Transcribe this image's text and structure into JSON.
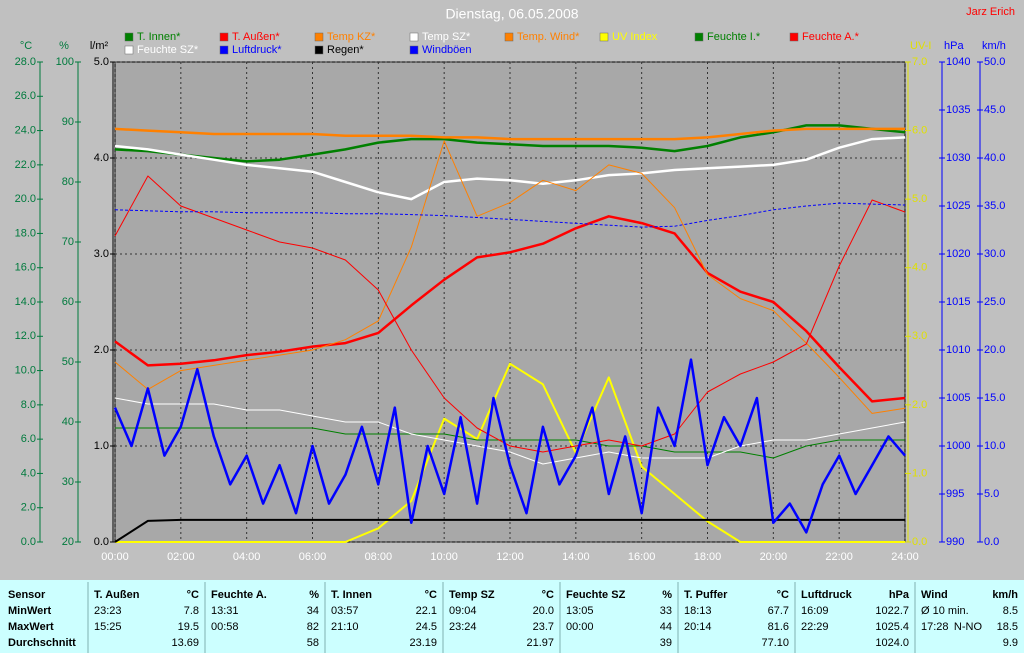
{
  "chart_data": {
    "type": "line",
    "title": "Dienstag, 06.05.2008",
    "author": "Jarz Erich",
    "xlim": [
      0,
      24
    ],
    "xticks": [
      {
        "value": 0,
        "label": "00:00"
      },
      {
        "value": 2,
        "label": "02:00"
      },
      {
        "value": 4,
        "label": "04:00"
      },
      {
        "value": 6,
        "label": "06:00"
      },
      {
        "value": 8,
        "label": "08:00"
      },
      {
        "value": 10,
        "label": "10:00"
      },
      {
        "value": 12,
        "label": "12:00"
      },
      {
        "value": 14,
        "label": "14:00"
      },
      {
        "value": 16,
        "label": "16:00"
      },
      {
        "value": 18,
        "label": "18:00"
      },
      {
        "value": 20,
        "label": "20:00"
      },
      {
        "value": 22,
        "label": "22:00"
      },
      {
        "value": 24,
        "label": "24:00"
      }
    ],
    "grid": true,
    "grid_axis": 2,
    "axes": [
      {
        "label": "°C",
        "color": "#007a3d",
        "side": "left",
        "lim": [
          0,
          28
        ],
        "ticks": [
          {
            "value": 0,
            "label": "0.0"
          },
          {
            "value": 2,
            "label": "2.0"
          },
          {
            "value": 4,
            "label": "4.0"
          },
          {
            "value": 6,
            "label": "6.0"
          },
          {
            "value": 8,
            "label": "8.0"
          },
          {
            "value": 10,
            "label": "10.0"
          },
          {
            "value": 12,
            "label": "12.0"
          },
          {
            "value": 14,
            "label": "14.0"
          },
          {
            "value": 16,
            "label": "16.0"
          },
          {
            "value": 18,
            "label": "18.0"
          },
          {
            "value": 20,
            "label": "20.0"
          },
          {
            "value": 22,
            "label": "22.0"
          },
          {
            "value": 24,
            "label": "24.0"
          },
          {
            "value": 26,
            "label": "26.0"
          },
          {
            "value": 28,
            "label": "28.0"
          }
        ]
      },
      {
        "label": "%",
        "color": "#007a3d",
        "side": "left",
        "lim": [
          20,
          100
        ],
        "ticks": [
          20,
          30,
          40,
          50,
          60,
          70,
          80,
          90,
          100
        ]
      },
      {
        "label": "l/m²",
        "color": "#000000",
        "side": "left",
        "lim": [
          0,
          5
        ],
        "ticks": [
          {
            "value": 0,
            "label": "0.0"
          },
          {
            "value": 1,
            "label": "1.0"
          },
          {
            "value": 2,
            "label": "2.0"
          },
          {
            "value": 3,
            "label": "3.0"
          },
          {
            "value": 4,
            "label": "4.0"
          },
          {
            "value": 5,
            "label": "5.0"
          }
        ]
      },
      {
        "label": "UV-I",
        "color": "#e0e000",
        "side": "right",
        "lim": [
          0,
          7
        ],
        "ticks": [
          {
            "value": 0,
            "label": "0.0"
          },
          {
            "value": 1,
            "label": "1.0"
          },
          {
            "value": 2,
            "label": "2.0"
          },
          {
            "value": 3,
            "label": "3.0"
          },
          {
            "value": 4,
            "label": "4.0"
          },
          {
            "value": 5,
            "label": "5.0"
          },
          {
            "value": 6,
            "label": "6.0"
          },
          {
            "value": 7,
            "label": "7.0"
          }
        ]
      },
      {
        "label": "hPa",
        "color": "#0000ff",
        "side": "right",
        "lim": [
          990,
          1040
        ],
        "ticks": [
          990,
          995,
          1000,
          1005,
          1010,
          1015,
          1020,
          1025,
          1030,
          1035,
          1040
        ]
      },
      {
        "label": "km/h",
        "color": "#0000ff",
        "side": "right",
        "lim": [
          0,
          50
        ],
        "ticks": [
          {
            "value": 0,
            "label": "0.0"
          },
          {
            "value": 5,
            "label": "5.0"
          },
          {
            "value": 10,
            "label": "10.0"
          },
          {
            "value": 15,
            "label": "15.0"
          },
          {
            "value": 20,
            "label": "20.0"
          },
          {
            "value": 25,
            "label": "25.0"
          },
          {
            "value": 30,
            "label": "30.0"
          },
          {
            "value": 35,
            "label": "35.0"
          },
          {
            "value": 40,
            "label": "40.0"
          },
          {
            "value": 45,
            "label": "45.0"
          },
          {
            "value": 50,
            "label": "50.0"
          }
        ]
      }
    ],
    "x": [
      0,
      1,
      2,
      3,
      4,
      5,
      6,
      7,
      8,
      9,
      10,
      11,
      12,
      13,
      14,
      15,
      16,
      17,
      18,
      19,
      20,
      21,
      22,
      23,
      24
    ],
    "series": [
      {
        "name": "T. Innen*",
        "color": "#008000",
        "axis": 0,
        "width": 2.5,
        "values": [
          22.9,
          22.8,
          22.6,
          22.4,
          22.2,
          22.3,
          22.6,
          22.9,
          23.3,
          23.5,
          23.5,
          23.3,
          23.2,
          23.1,
          23.1,
          23.1,
          23.0,
          22.8,
          23.1,
          23.6,
          23.9,
          24.3,
          24.3,
          24.1,
          23.9
        ]
      },
      {
        "name": "T. Außen*",
        "color": "#ff0000",
        "axis": 0,
        "width": 2.5,
        "values": [
          11.7,
          10.3,
          10.4,
          10.6,
          10.9,
          11.1,
          11.4,
          11.6,
          12.2,
          13.8,
          15.3,
          16.6,
          16.9,
          17.4,
          18.3,
          19.0,
          18.6,
          18.0,
          15.7,
          14.6,
          14.0,
          12.3,
          10.2,
          8.2,
          8.4
        ]
      },
      {
        "name": "Temp KZ*",
        "color": "#ff8000",
        "axis": 0,
        "width": 2.5,
        "values": [
          24.1,
          24.0,
          23.9,
          23.8,
          23.8,
          23.8,
          23.8,
          23.7,
          23.7,
          23.7,
          23.6,
          23.6,
          23.5,
          23.5,
          23.5,
          23.5,
          23.5,
          23.5,
          23.6,
          23.8,
          24.0,
          24.1,
          24.1,
          24.1,
          24.1
        ]
      },
      {
        "name": "Temp SZ*",
        "color": "#ffffff",
        "axis": 0,
        "width": 2.5,
        "values": [
          23.1,
          22.9,
          22.6,
          22.3,
          22.0,
          21.8,
          21.6,
          21.0,
          20.4,
          20.0,
          21.0,
          21.2,
          21.1,
          20.9,
          21.1,
          21.4,
          21.5,
          21.7,
          21.8,
          21.9,
          22.0,
          22.3,
          23.0,
          23.5,
          23.6
        ]
      },
      {
        "name": "Temp. Wind*",
        "color": "#ff8000",
        "axis": 0,
        "width": 1,
        "values": [
          10.5,
          8.9,
          10.0,
          10.3,
          10.6,
          10.9,
          11.2,
          11.8,
          12.9,
          17.2,
          23.4,
          19.0,
          19.8,
          21.1,
          20.5,
          22.0,
          21.5,
          19.5,
          15.6,
          14.2,
          13.5,
          11.6,
          9.6,
          7.5,
          7.8
        ]
      },
      {
        "name": "UV Index",
        "color": "#ffff00",
        "axis": 3,
        "width": 2,
        "values": [
          0,
          0,
          0,
          0,
          0,
          0,
          0,
          0,
          0.2,
          0.6,
          1.8,
          1.5,
          2.6,
          2.3,
          1.3,
          2.4,
          1.1,
          0.7,
          0.3,
          0,
          0,
          0,
          0,
          0,
          0
        ]
      },
      {
        "name": "Feuchte I.*",
        "color": "#008000",
        "axis": 1,
        "width": 1,
        "values": [
          39,
          39,
          39,
          39,
          39,
          39,
          39,
          38,
          38,
          38,
          38,
          37,
          37,
          37,
          37,
          36,
          36,
          35,
          35,
          35,
          34,
          36,
          37,
          37,
          37
        ]
      },
      {
        "name": "Feuchte A.*",
        "color": "#ff0000",
        "axis": 1,
        "width": 1,
        "values": [
          71,
          81,
          76,
          74,
          72,
          70,
          69,
          67,
          62,
          52,
          44,
          39,
          36,
          35,
          36,
          37,
          36,
          38,
          45,
          48,
          50,
          53,
          66,
          77,
          75
        ]
      },
      {
        "name": "Feuchte SZ*",
        "color": "#ffffff",
        "axis": 1,
        "width": 1,
        "values": [
          44,
          43,
          43,
          43,
          42,
          42,
          41,
          40,
          40,
          38,
          37,
          36,
          35,
          33,
          34,
          35,
          34,
          34,
          34,
          36,
          37,
          37,
          38,
          39,
          40
        ]
      },
      {
        "name": "Luftdruck*",
        "color": "#0000ff",
        "axis": 4,
        "width": 1,
        "dash": true,
        "values": [
          1024.6,
          1024.5,
          1024.4,
          1024.4,
          1024.3,
          1024.3,
          1024.3,
          1024.2,
          1024.2,
          1024.1,
          1024.0,
          1023.8,
          1023.6,
          1023.4,
          1023.2,
          1023.0,
          1022.8,
          1022.9,
          1023.5,
          1024.0,
          1024.6,
          1025.0,
          1025.3,
          1025.2,
          1025.1
        ]
      },
      {
        "name": "Regen*",
        "color": "#000000",
        "axis": 2,
        "width": 2,
        "values": [
          0,
          0.22,
          0.23,
          0.23,
          0.23,
          0.23,
          0.23,
          0.23,
          0.23,
          0.23,
          0.23,
          0.23,
          0.23,
          0.23,
          0.23,
          0.23,
          0.23,
          0.23,
          0.23,
          0.23,
          0.23,
          0.23,
          0.23,
          0.23,
          0.23
        ]
      },
      {
        "name": "Windböen",
        "color": "#0000ff",
        "axis": 5,
        "width": 2.5,
        "x": [
          0,
          0.5,
          1,
          1.5,
          2,
          2.5,
          3,
          3.5,
          4,
          4.5,
          5,
          5.5,
          6,
          6.5,
          7,
          7.5,
          8,
          8.5,
          9,
          9.5,
          10,
          10.5,
          11,
          11.5,
          12,
          12.5,
          13,
          13.5,
          14,
          14.5,
          15,
          15.5,
          16,
          16.5,
          17,
          17.5,
          18,
          18.5,
          19,
          19.5,
          20,
          20.5,
          21,
          21.5,
          22,
          22.5,
          23,
          23.5,
          24
        ],
        "values": [
          14,
          10,
          16,
          9,
          12,
          18,
          11,
          6,
          9,
          4,
          8,
          3,
          10,
          4,
          7,
          12,
          6,
          14,
          2,
          10,
          5,
          13,
          4,
          15,
          8,
          3,
          12,
          6,
          9,
          14,
          5,
          11,
          3,
          14,
          10,
          19,
          8,
          13,
          10,
          15,
          2,
          4,
          1,
          6,
          9,
          5,
          8,
          11,
          9
        ]
      }
    ]
  },
  "stats_table": {
    "header": "Sensor",
    "row_labels": [
      "MinWert",
      "MaxWert",
      "Durchschnitt"
    ],
    "columns": [
      {
        "name": "T. Außen",
        "unit": "°C",
        "cells": [
          [
            "23:23",
            "7.8"
          ],
          [
            "15:25",
            "19.5"
          ],
          [
            "13.69"
          ]
        ]
      },
      {
        "name": "Feuchte A.",
        "unit": "%",
        "cells": [
          [
            "13:31",
            "34"
          ],
          [
            "00:58",
            "82"
          ],
          [
            "58"
          ]
        ]
      },
      {
        "name": "T. Innen",
        "unit": "°C",
        "cells": [
          [
            "03:57",
            "22.1"
          ],
          [
            "21:10",
            "24.5"
          ],
          [
            "23.19"
          ]
        ]
      },
      {
        "name": "Temp SZ",
        "unit": "°C",
        "cells": [
          [
            "09:04",
            "20.0"
          ],
          [
            "23:24",
            "23.7"
          ],
          [
            "21.97"
          ]
        ]
      },
      {
        "name": "Feuchte SZ",
        "unit": "%",
        "cells": [
          [
            "13:05",
            "33"
          ],
          [
            "00:00",
            "44"
          ],
          [
            "39"
          ]
        ]
      },
      {
        "name": "T. Puffer",
        "unit": "°C",
        "cells": [
          [
            "18:13",
            "67.7"
          ],
          [
            "20:14",
            "81.6"
          ],
          [
            "77.10"
          ]
        ]
      },
      {
        "name": "Luftdruck",
        "unit": "hPa",
        "cells": [
          [
            "16:09",
            "1022.7"
          ],
          [
            "22:29",
            "1025.4"
          ],
          [
            "1024.0"
          ]
        ]
      },
      {
        "name": "Wind",
        "unit": "km/h",
        "cells": [
          [
            "Ø 10 min.",
            "8.5"
          ],
          [
            "17:28",
            "N-NO",
            "18.5"
          ],
          [
            "9.9"
          ]
        ]
      }
    ]
  }
}
